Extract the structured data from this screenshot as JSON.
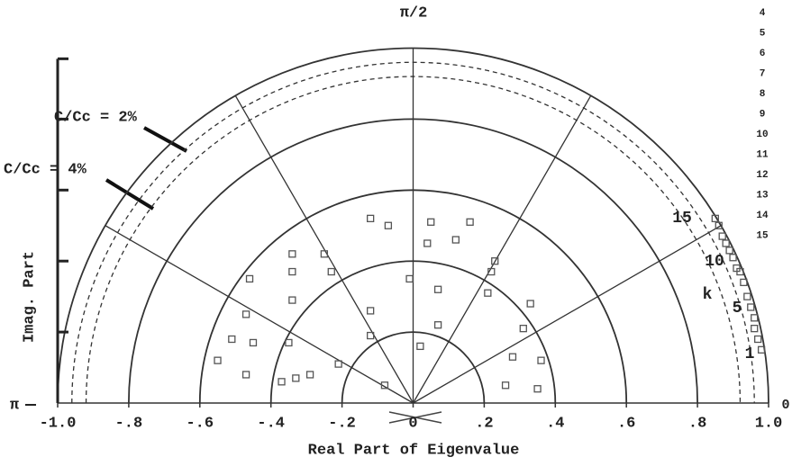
{
  "chart_data": {
    "type": "scatter",
    "top_label": "π/2",
    "left_label": "π",
    "xlabel": "Real Part of Eigenvalue",
    "ylabel": "Imag. Part",
    "annotations": [
      "C/Cc = 2%",
      "C/Cc = 4%"
    ],
    "mode_labels": [
      "15",
      "10",
      "k",
      "5",
      "1"
    ],
    "side_labels": [
      "4",
      "5",
      "6",
      "7",
      "8",
      "9",
      "10",
      "11",
      "12",
      "13",
      "14",
      "15"
    ],
    "corner_label": "0",
    "xlim": [
      -1.0,
      1.0
    ],
    "xticks": [
      {
        "value": -1.0,
        "label": "-1.0"
      },
      {
        "value": -0.8,
        "label": "-.8"
      },
      {
        "value": -0.6,
        "label": "-.6"
      },
      {
        "value": -0.4,
        "label": "-.4"
      },
      {
        "value": -0.2,
        "label": "-.2"
      },
      0,
      {
        "value": 0.2,
        "label": ".2"
      },
      {
        "value": 0.4,
        "label": ".4"
      },
      {
        "value": 0.6,
        "label": ".6"
      },
      {
        "value": 0.8,
        "label": ".8"
      },
      {
        "value": 1.0,
        "label": "1.0"
      }
    ],
    "ylim": [
      0,
      1.0
    ],
    "yticks": [
      0.2,
      0.4,
      0.6,
      0.8,
      0.97
    ],
    "circles": [
      0.2,
      0.4,
      0.6,
      0.8,
      1.0
    ],
    "dashed_circles": [
      0.96,
      0.92
    ],
    "spokes_deg": [
      30,
      60,
      90,
      120,
      150
    ],
    "series": [
      {
        "color": "#555555",
        "x": [
          -0.12,
          -0.07,
          0.05,
          0.16,
          0.04,
          0.12,
          -0.25,
          -0.34,
          -0.34,
          -0.23,
          -0.46,
          -0.01,
          0.22,
          0.23,
          0.07,
          -0.34,
          0.21,
          -0.47,
          -0.12,
          0.33,
          0.07,
          -0.51,
          -0.45,
          -0.35,
          0.02,
          0.31,
          -0.55,
          -0.21,
          0.28,
          0.36,
          -0.47,
          -0.29,
          -0.33,
          -0.37,
          -0.08,
          0.26,
          0.35,
          -0.12,
          0.85,
          0.86,
          0.87,
          0.88,
          0.89,
          0.9,
          0.91,
          0.92,
          0.93,
          0.94,
          0.95,
          0.96,
          0.96,
          0.97,
          0.98
        ],
        "values": [
          0.52,
          0.5,
          0.51,
          0.51,
          0.45,
          0.46,
          0.42,
          0.42,
          0.37,
          0.37,
          0.35,
          0.35,
          0.37,
          0.4,
          0.32,
          0.29,
          0.31,
          0.25,
          0.26,
          0.28,
          0.22,
          0.18,
          0.17,
          0.17,
          0.16,
          0.21,
          0.12,
          0.11,
          0.13,
          0.12,
          0.08,
          0.08,
          0.07,
          0.06,
          0.05,
          0.05,
          0.04,
          0.19,
          0.52,
          0.5,
          0.47,
          0.45,
          0.43,
          0.41,
          0.38,
          0.37,
          0.34,
          0.3,
          0.27,
          0.24,
          0.21,
          0.18,
          0.15
        ]
      }
    ]
  }
}
